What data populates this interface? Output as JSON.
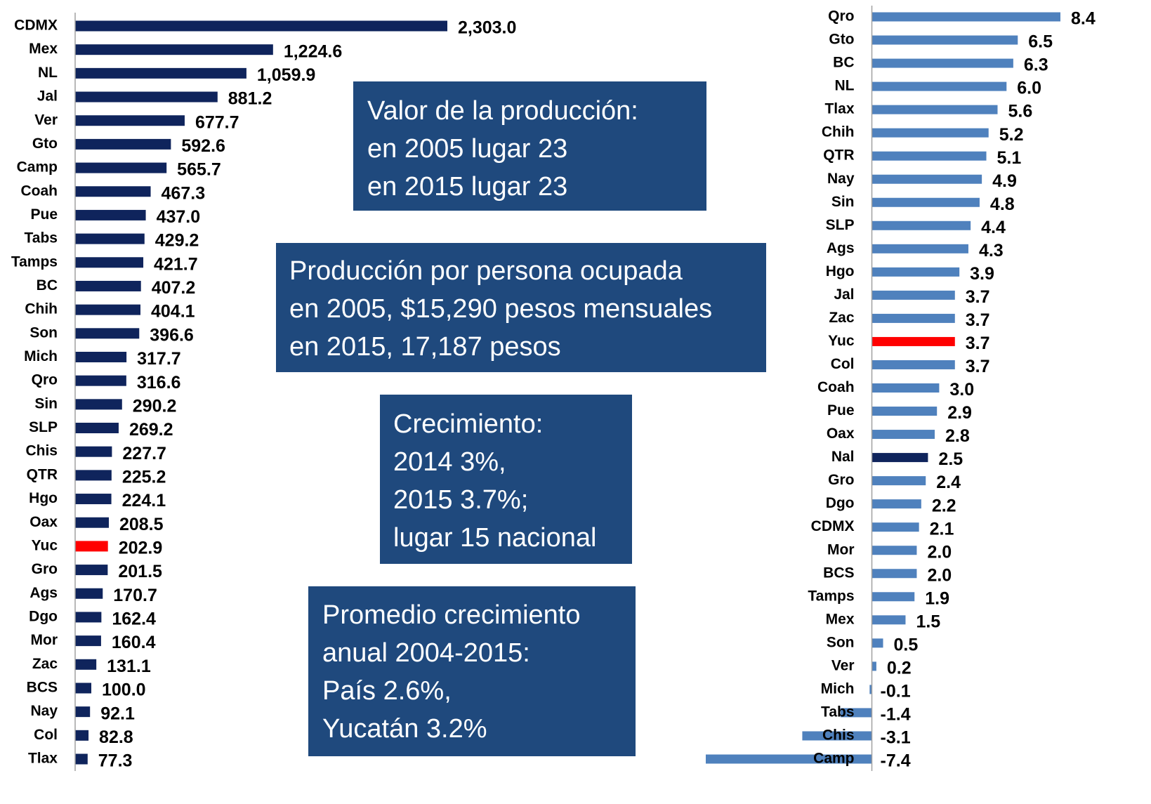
{
  "chart_data": [
    {
      "type": "barh",
      "categories": [
        "CDMX",
        "Mex",
        "NL",
        "Jal",
        "Ver",
        "Gto",
        "Camp",
        "Coah",
        "Pue",
        "Tabs",
        "Tamps",
        "BC",
        "Chih",
        "Son",
        "Mich",
        "Qro",
        "Sin",
        "SLP",
        "Chis",
        "QTR",
        "Hgo",
        "Oax",
        "Yuc",
        "Gro",
        "Ags",
        "Dgo",
        "Mor",
        "Zac",
        "BCS",
        "Nay",
        "Col",
        "Tlax"
      ],
      "values": [
        2303.0,
        1224.6,
        1059.9,
        881.2,
        677.7,
        592.6,
        565.7,
        467.3,
        437.0,
        429.2,
        421.7,
        407.2,
        404.1,
        396.6,
        317.7,
        316.6,
        290.2,
        269.2,
        227.7,
        225.2,
        224.1,
        208.5,
        202.9,
        201.5,
        170.7,
        162.4,
        160.4,
        131.1,
        100.0,
        92.1,
        82.8,
        77.3
      ],
      "value_labels": [
        "2,303.0",
        "1,224.6",
        "1,059.9",
        "881.2",
        "677.7",
        "592.6",
        "565.7",
        "467.3",
        "437.0",
        "429.2",
        "421.7",
        "407.2",
        "404.1",
        "396.6",
        "317.7",
        "316.6",
        "290.2",
        "269.2",
        "227.7",
        "225.2",
        "224.1",
        "208.5",
        "202.9",
        "201.5",
        "170.7",
        "162.4",
        "160.4",
        "131.1",
        "100.0",
        "92.1",
        "82.8",
        "77.3"
      ],
      "colors": [
        "#0f245c",
        "#0f245c",
        "#0f245c",
        "#0f245c",
        "#0f245c",
        "#0f245c",
        "#0f245c",
        "#0f245c",
        "#0f245c",
        "#0f245c",
        "#0f245c",
        "#0f245c",
        "#0f245c",
        "#0f245c",
        "#0f245c",
        "#0f245c",
        "#0f245c",
        "#0f245c",
        "#0f245c",
        "#0f245c",
        "#0f245c",
        "#0f245c",
        "#ff0000",
        "#0f245c",
        "#0f245c",
        "#0f245c",
        "#0f245c",
        "#0f245c",
        "#0f245c",
        "#0f245c",
        "#0f245c",
        "#0f245c"
      ],
      "xlim": [
        0,
        2303.0
      ]
    },
    {
      "type": "barh",
      "categories": [
        "Qro",
        "Gto",
        "BC",
        "NL",
        "Tlax",
        "Chih",
        "QTR",
        "Nay",
        "Sin",
        "SLP",
        "Ags",
        "Hgo",
        "Jal",
        "Zac",
        "Yuc",
        "Col",
        "Coah",
        "Pue",
        "Oax",
        "Nal",
        "Gro",
        "Dgo",
        "CDMX",
        "Mor",
        "BCS",
        "Tamps",
        "Mex",
        "Son",
        "Ver",
        "Mich",
        "Tabs",
        "Chis",
        "Camp"
      ],
      "values": [
        8.4,
        6.5,
        6.3,
        6.0,
        5.6,
        5.2,
        5.1,
        4.9,
        4.8,
        4.4,
        4.3,
        3.9,
        3.7,
        3.7,
        3.7,
        3.7,
        3.0,
        2.9,
        2.8,
        2.5,
        2.4,
        2.2,
        2.1,
        2.0,
        2.0,
        1.9,
        1.5,
        0.5,
        0.2,
        -0.1,
        -1.4,
        -3.1,
        -7.4
      ],
      "value_labels": [
        "8.4",
        "6.5",
        "6.3",
        "6.0",
        "5.6",
        "5.2",
        "5.1",
        "4.9",
        "4.8",
        "4.4",
        "4.3",
        "3.9",
        "3.7",
        "3.7",
        "3.7",
        "3.7",
        "3.0",
        "2.9",
        "2.8",
        "2.5",
        "2.4",
        "2.2",
        "2.1",
        "2.0",
        "2.0",
        "1.9",
        "1.5",
        "0.5",
        "0.2",
        "-0.1",
        "-1.4",
        "-3.1",
        "-7.4"
      ],
      "colors": [
        "#4f81bd",
        "#4f81bd",
        "#4f81bd",
        "#4f81bd",
        "#4f81bd",
        "#4f81bd",
        "#4f81bd",
        "#4f81bd",
        "#4f81bd",
        "#4f81bd",
        "#4f81bd",
        "#4f81bd",
        "#4f81bd",
        "#4f81bd",
        "#ff0000",
        "#4f81bd",
        "#4f81bd",
        "#4f81bd",
        "#4f81bd",
        "#0f245c",
        "#4f81bd",
        "#4f81bd",
        "#4f81bd",
        "#4f81bd",
        "#4f81bd",
        "#4f81bd",
        "#4f81bd",
        "#4f81bd",
        "#4f81bd",
        "#4f81bd",
        "#4f81bd",
        "#4f81bd",
        "#4f81bd"
      ],
      "negative_label_color": "#ff0000",
      "xlim": [
        -7.4,
        8.4
      ]
    }
  ],
  "text_boxes": [
    {
      "lines": [
        "Valor de la producción:",
        "en 2005 lugar 23",
        "en 2015 lugar 23"
      ]
    },
    {
      "lines": [
        "Producción por persona ocupada",
        "en 2005, $15,290 pesos mensuales",
        "en 2015, 17,187 pesos"
      ]
    },
    {
      "lines": [
        "Crecimiento:",
        "2014 3%,",
        "2015 3.7%;",
        "lugar 15 nacional"
      ]
    },
    {
      "lines": [
        "Promedio crecimiento",
        "anual 2004-2015:",
        "País 2.6%,",
        "Yucatán 3.2%"
      ]
    }
  ],
  "box_color": "#1f497d"
}
